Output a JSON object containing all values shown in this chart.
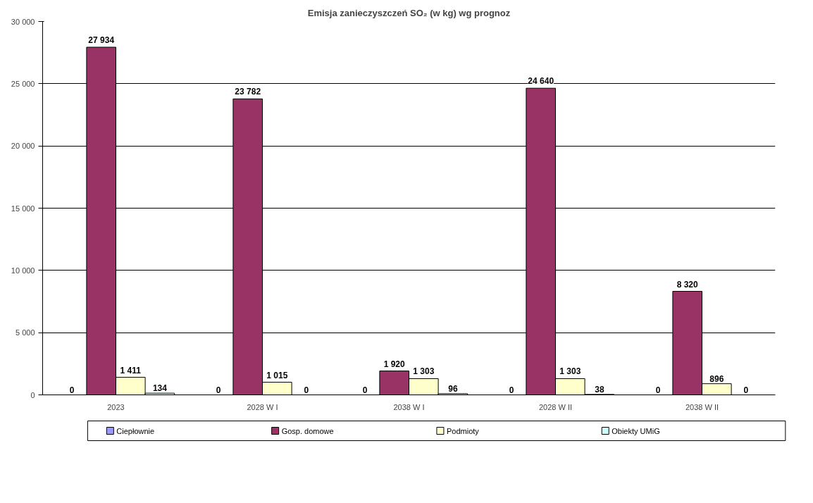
{
  "chart_data": {
    "type": "bar",
    "title": "Emisja zanieczyszczeń SO₂ (w kg) wg prognoz",
    "categories": [
      "2023",
      "2028 W I",
      "2038 W I",
      "2028 W II",
      "2038 W II"
    ],
    "series": [
      {
        "name": "Ciepłownie",
        "color": "#9999ff",
        "values": [
          0,
          0,
          0,
          0,
          0
        ],
        "value_labels": [
          "0",
          "0",
          "0",
          "0",
          "0"
        ]
      },
      {
        "name": "Gosp. domowe",
        "color": "#993366",
        "values": [
          27934,
          23782,
          1920,
          24640,
          8320
        ],
        "value_labels": [
          "27 934",
          "23 782",
          "1 920",
          "24 640",
          "8 320"
        ]
      },
      {
        "name": "Podmioty",
        "color": "#ffffcc",
        "values": [
          1411,
          1015,
          1303,
          1303,
          896
        ],
        "value_labels": [
          "1 411",
          "1 015",
          "1 303",
          "1 303",
          "896"
        ]
      },
      {
        "name": "Obiekty UMiG",
        "color": "#ccffff",
        "values": [
          134,
          0,
          96,
          38,
          0
        ],
        "value_labels": [
          "134",
          "0",
          "96",
          "38",
          "0"
        ]
      }
    ],
    "ylim": [
      0,
      30000
    ],
    "yticks": [
      {
        "value": 0,
        "label": "0"
      },
      {
        "value": 5000,
        "label": "5 000"
      },
      {
        "value": 10000,
        "label": "10 000"
      },
      {
        "value": 15000,
        "label": "15 000"
      },
      {
        "value": 20000,
        "label": "20 000"
      },
      {
        "value": 25000,
        "label": "25 000"
      },
      {
        "value": 30000,
        "label": "30 000"
      }
    ],
    "grid": "y",
    "legend": "bottom"
  }
}
